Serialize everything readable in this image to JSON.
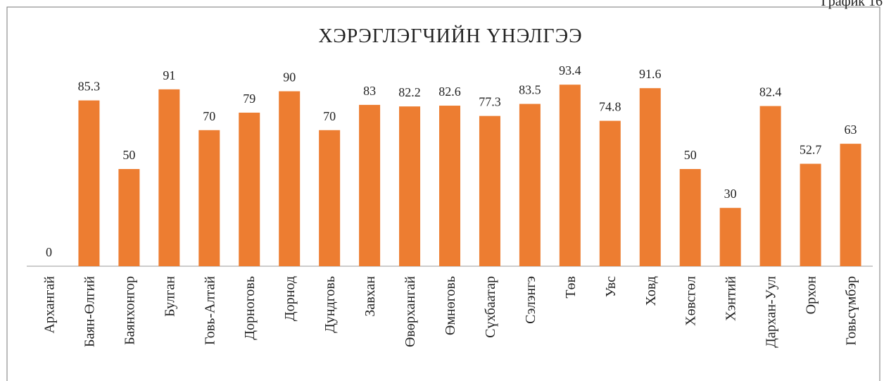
{
  "page_label": "График 16",
  "chart_data": {
    "type": "bar",
    "title": "ХЭРЭГЛЭГЧИЙН ҮНЭЛГЭЭ",
    "categories": [
      "Архангай",
      "Баян-Өлгий",
      "Баянхонгор",
      "Булган",
      "Говь-Алтай",
      "Дорноговь",
      "Дорнод",
      "Дундговь",
      "Завхан",
      "Өвөрхангай",
      "Өмнөговь",
      "Сүхбаатар",
      "Сэлэнгэ",
      "Төв",
      "Увс",
      "Ховд",
      "Хөвсгөл",
      "Хэнтий",
      "Дархан-Уул",
      "Орхон",
      "Говьсүмбэр"
    ],
    "values": [
      0,
      85.3,
      50,
      91,
      70,
      79,
      90,
      70,
      83,
      82.2,
      82.6,
      77.3,
      83.5,
      93.4,
      74.8,
      91.6,
      50,
      30,
      82.4,
      52.7,
      63
    ],
    "color": "#ed7d31",
    "ylim": [
      0,
      100
    ]
  }
}
